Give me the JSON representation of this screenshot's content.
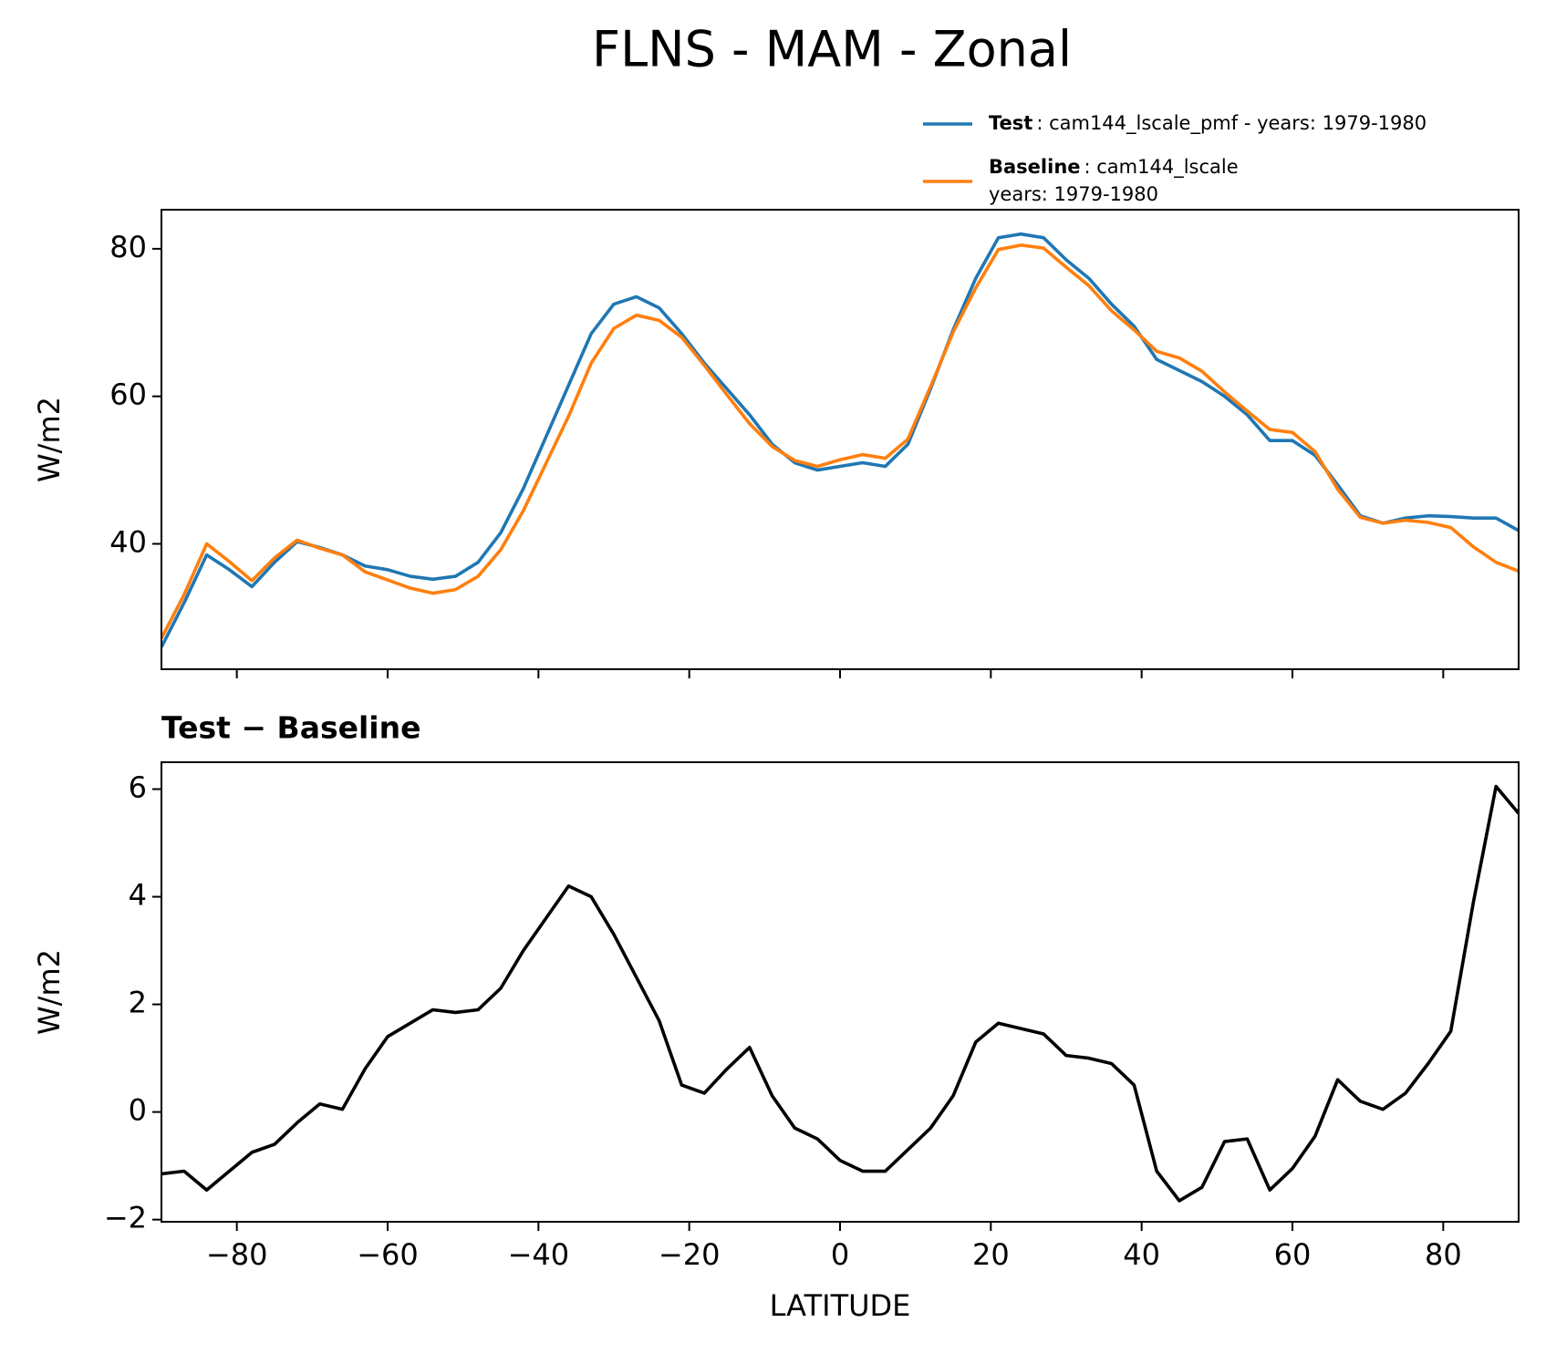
{
  "title": "FLNS - MAM - Zonal",
  "chart_data": [
    {
      "type": "line",
      "ylabel": "W/m2",
      "xlim": [
        -90,
        90
      ],
      "xticks": [
        -80,
        -60,
        -40,
        -20,
        0,
        20,
        40,
        60,
        80
      ],
      "ylim": [
        23,
        85.3
      ],
      "yticks": [
        40,
        60,
        80
      ],
      "x": [
        -90,
        -87,
        -84,
        -81,
        -78,
        -75,
        -72,
        -69,
        -66,
        -63,
        -60,
        -57,
        -54,
        -51,
        -48,
        -45,
        -42,
        -39,
        -36,
        -33,
        -30,
        -27,
        -24,
        -21,
        -18,
        -15,
        -12,
        -9,
        -6,
        -3,
        0,
        3,
        6,
        9,
        12,
        15,
        18,
        21,
        24,
        27,
        30,
        33,
        36,
        39,
        42,
        45,
        48,
        51,
        54,
        57,
        60,
        63,
        66,
        69,
        72,
        75,
        78,
        81,
        84,
        87,
        90
      ],
      "series": [
        {
          "name": "Test",
          "description": [
            ": cam144_lscale_pmf - years: 1979-1980"
          ],
          "color": "#1f77b4",
          "values": [
            26,
            32,
            38.5,
            36.5,
            34.2,
            37.5,
            40.3,
            39.5,
            38.5,
            37,
            36.5,
            35.6,
            35.2,
            35.6,
            37.5,
            41.5,
            47.5,
            54.5,
            61.5,
            68.5,
            72.5,
            73.5,
            72,
            68.5,
            64.5,
            61,
            57.5,
            53.5,
            51,
            50,
            50.5,
            51,
            50.5,
            53.5,
            61,
            69,
            76,
            81.5,
            82,
            81.5,
            78.5,
            76,
            72.5,
            69.5,
            65,
            63.5,
            62,
            60,
            57.5,
            54,
            54,
            52,
            48,
            43.8,
            42.8,
            43.5,
            43.8,
            43.7,
            43.5,
            43.5,
            41.8
          ]
        },
        {
          "name": "Baseline",
          "description": [
            ": cam144_lscale",
            "years: 1979-1980"
          ],
          "color": "#ff7f0e",
          "values": [
            27.2,
            33.1,
            40,
            37.6,
            35,
            38.1,
            40.5,
            39.4,
            38.5,
            36.2,
            35.1,
            34,
            33.3,
            33.8,
            35.6,
            39.2,
            44.5,
            50.9,
            57.3,
            64.5,
            69.2,
            71,
            70.3,
            68,
            64.2,
            60.2,
            56.3,
            53.2,
            51.3,
            50.5,
            51.4,
            52.1,
            51.6,
            54.2,
            61.3,
            68.7,
            74.7,
            79.9,
            80.5,
            80.1,
            77.5,
            75,
            71.6,
            69,
            66.1,
            65.2,
            63.4,
            60.6,
            58,
            55.5,
            55.1,
            52.5,
            47.4,
            43.6,
            42.8,
            43.2,
            42.9,
            42.2,
            39.6,
            37.5,
            36.3
          ]
        }
      ]
    },
    {
      "type": "line",
      "title": "Test − Baseline",
      "xlabel": "LATITUDE",
      "ylabel": "W/m2",
      "xlim": [
        -90,
        90
      ],
      "xticks": [
        {
          "value": -80,
          "label": "−80"
        },
        {
          "value": -60,
          "label": "−60"
        },
        {
          "value": -40,
          "label": "−40"
        },
        {
          "value": -20,
          "label": "−20"
        },
        0,
        20,
        40,
        60,
        80
      ],
      "ylim": [
        -2.04,
        6.5
      ],
      "yticks": [
        {
          "value": -2,
          "label": "−2"
        },
        0,
        2,
        4,
        6
      ],
      "x": [
        -90,
        -87,
        -84,
        -81,
        -78,
        -75,
        -72,
        -69,
        -66,
        -63,
        -60,
        -57,
        -54,
        -51,
        -48,
        -45,
        -42,
        -39,
        -36,
        -33,
        -30,
        -27,
        -24,
        -21,
        -18,
        -15,
        -12,
        -9,
        -6,
        -3,
        0,
        3,
        6,
        9,
        12,
        15,
        18,
        21,
        24,
        27,
        30,
        33,
        36,
        39,
        42,
        45,
        48,
        51,
        54,
        57,
        60,
        63,
        66,
        69,
        72,
        75,
        78,
        81,
        84,
        87,
        90
      ],
      "series": [
        {
          "color": "#000000",
          "values": [
            -1.15,
            -1.1,
            -1.45,
            -1.1,
            -0.75,
            -0.6,
            -0.2,
            0.15,
            0.05,
            0.8,
            1.4,
            1.65,
            1.9,
            1.85,
            1.9,
            2.3,
            3.0,
            3.6,
            4.2,
            4.0,
            3.3,
            2.5,
            1.7,
            0.5,
            0.35,
            0.8,
            1.2,
            0.3,
            -0.3,
            -0.5,
            -0.9,
            -1.1,
            -1.1,
            -0.7,
            -0.3,
            0.3,
            1.3,
            1.65,
            1.55,
            1.45,
            1.05,
            1.0,
            0.9,
            0.5,
            -1.1,
            -1.65,
            -1.4,
            -0.55,
            -0.5,
            -1.45,
            -1.05,
            -0.45,
            0.6,
            0.2,
            0.05,
            0.35,
            0.9,
            1.5,
            3.9,
            6.05,
            5.55
          ]
        }
      ]
    }
  ]
}
